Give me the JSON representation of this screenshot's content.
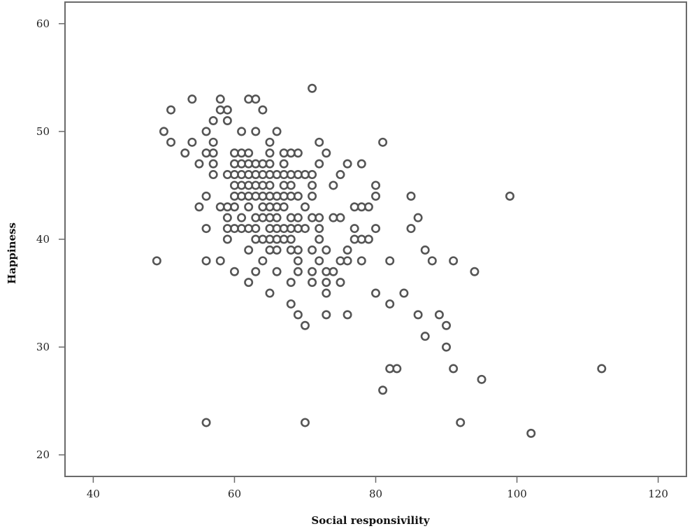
{
  "chart_data": {
    "type": "scatter",
    "title": "",
    "xlabel": "Social responsivility",
    "ylabel": "Happiness",
    "xlim": [
      36,
      124
    ],
    "ylim": [
      18,
      62
    ],
    "x_ticks": [
      40,
      60,
      80,
      100,
      120
    ],
    "y_ticks": [
      20,
      30,
      40,
      50,
      60
    ],
    "grid": false,
    "legend": "none",
    "marker": "hollow-circle",
    "marker_color": "#555555",
    "points": [
      [
        49,
        38
      ],
      [
        50,
        50
      ],
      [
        51,
        52
      ],
      [
        51,
        49
      ],
      [
        53,
        48
      ],
      [
        54,
        53
      ],
      [
        54,
        49
      ],
      [
        55,
        47
      ],
      [
        55,
        43
      ],
      [
        56,
        50
      ],
      [
        56,
        48
      ],
      [
        56,
        44
      ],
      [
        56,
        41
      ],
      [
        56,
        38
      ],
      [
        56,
        23
      ],
      [
        57,
        51
      ],
      [
        57,
        49
      ],
      [
        57,
        48
      ],
      [
        57,
        47
      ],
      [
        57,
        46
      ],
      [
        58,
        53
      ],
      [
        58,
        52
      ],
      [
        58,
        43
      ],
      [
        58,
        38
      ],
      [
        59,
        52
      ],
      [
        59,
        51
      ],
      [
        59,
        46
      ],
      [
        59,
        43
      ],
      [
        59,
        42
      ],
      [
        59,
        41
      ],
      [
        59,
        40
      ],
      [
        60,
        48
      ],
      [
        60,
        47
      ],
      [
        60,
        46
      ],
      [
        60,
        45
      ],
      [
        60,
        44
      ],
      [
        60,
        43
      ],
      [
        60,
        41
      ],
      [
        60,
        37
      ],
      [
        61,
        50
      ],
      [
        61,
        48
      ],
      [
        61,
        47
      ],
      [
        61,
        46
      ],
      [
        61,
        45
      ],
      [
        61,
        44
      ],
      [
        61,
        42
      ],
      [
        61,
        41
      ],
      [
        62,
        53
      ],
      [
        62,
        48
      ],
      [
        62,
        47
      ],
      [
        62,
        46
      ],
      [
        62,
        45
      ],
      [
        62,
        44
      ],
      [
        62,
        43
      ],
      [
        62,
        41
      ],
      [
        62,
        39
      ],
      [
        62,
        36
      ],
      [
        63,
        53
      ],
      [
        63,
        50
      ],
      [
        63,
        47
      ],
      [
        63,
        46
      ],
      [
        63,
        45
      ],
      [
        63,
        44
      ],
      [
        63,
        42
      ],
      [
        63,
        41
      ],
      [
        63,
        40
      ],
      [
        63,
        37
      ],
      [
        64,
        52
      ],
      [
        64,
        47
      ],
      [
        64,
        46
      ],
      [
        64,
        45
      ],
      [
        64,
        44
      ],
      [
        64,
        43
      ],
      [
        64,
        42
      ],
      [
        64,
        40
      ],
      [
        64,
        38
      ],
      [
        65,
        49
      ],
      [
        65,
        48
      ],
      [
        65,
        47
      ],
      [
        65,
        46
      ],
      [
        65,
        45
      ],
      [
        65,
        44
      ],
      [
        65,
        43
      ],
      [
        65,
        42
      ],
      [
        65,
        41
      ],
      [
        65,
        40
      ],
      [
        65,
        39
      ],
      [
        65,
        35
      ],
      [
        66,
        50
      ],
      [
        66,
        46
      ],
      [
        66,
        44
      ],
      [
        66,
        43
      ],
      [
        66,
        42
      ],
      [
        66,
        41
      ],
      [
        66,
        40
      ],
      [
        66,
        39
      ],
      [
        66,
        37
      ],
      [
        67,
        48
      ],
      [
        67,
        47
      ],
      [
        67,
        46
      ],
      [
        67,
        45
      ],
      [
        67,
        44
      ],
      [
        67,
        43
      ],
      [
        67,
        41
      ],
      [
        67,
        40
      ],
      [
        68,
        48
      ],
      [
        68,
        46
      ],
      [
        68,
        45
      ],
      [
        68,
        44
      ],
      [
        68,
        42
      ],
      [
        68,
        41
      ],
      [
        68,
        40
      ],
      [
        68,
        39
      ],
      [
        68,
        36
      ],
      [
        68,
        34
      ],
      [
        69,
        48
      ],
      [
        69,
        46
      ],
      [
        69,
        44
      ],
      [
        69,
        42
      ],
      [
        69,
        41
      ],
      [
        69,
        39
      ],
      [
        69,
        38
      ],
      [
        69,
        37
      ],
      [
        69,
        33
      ],
      [
        70,
        46
      ],
      [
        70,
        43
      ],
      [
        70,
        41
      ],
      [
        70,
        32
      ],
      [
        70,
        23
      ],
      [
        71,
        54
      ],
      [
        71,
        46
      ],
      [
        71,
        45
      ],
      [
        71,
        44
      ],
      [
        71,
        42
      ],
      [
        71,
        39
      ],
      [
        71,
        37
      ],
      [
        71,
        36
      ],
      [
        72,
        49
      ],
      [
        72,
        47
      ],
      [
        72,
        42
      ],
      [
        72,
        41
      ],
      [
        72,
        40
      ],
      [
        72,
        38
      ],
      [
        73,
        48
      ],
      [
        73,
        39
      ],
      [
        73,
        37
      ],
      [
        73,
        36
      ],
      [
        73,
        35
      ],
      [
        73,
        33
      ],
      [
        74,
        45
      ],
      [
        74,
        42
      ],
      [
        74,
        37
      ],
      [
        75,
        46
      ],
      [
        75,
        42
      ],
      [
        75,
        38
      ],
      [
        75,
        36
      ],
      [
        76,
        47
      ],
      [
        76,
        39
      ],
      [
        76,
        38
      ],
      [
        76,
        33
      ],
      [
        77,
        43
      ],
      [
        77,
        41
      ],
      [
        77,
        40
      ],
      [
        78,
        47
      ],
      [
        78,
        43
      ],
      [
        78,
        40
      ],
      [
        78,
        38
      ],
      [
        79,
        43
      ],
      [
        79,
        40
      ],
      [
        80,
        45
      ],
      [
        80,
        44
      ],
      [
        80,
        41
      ],
      [
        80,
        35
      ],
      [
        81,
        49
      ],
      [
        81,
        26
      ],
      [
        82,
        38
      ],
      [
        82,
        34
      ],
      [
        82,
        28
      ],
      [
        83,
        28
      ],
      [
        84,
        35
      ],
      [
        85,
        44
      ],
      [
        85,
        41
      ],
      [
        86,
        42
      ],
      [
        86,
        33
      ],
      [
        87,
        39
      ],
      [
        87,
        31
      ],
      [
        88,
        38
      ],
      [
        89,
        33
      ],
      [
        90,
        32
      ],
      [
        90,
        30
      ],
      [
        91,
        38
      ],
      [
        91,
        28
      ],
      [
        92,
        23
      ],
      [
        94,
        37
      ],
      [
        95,
        27
      ],
      [
        99,
        44
      ],
      [
        102,
        22
      ],
      [
        112,
        28
      ]
    ]
  }
}
